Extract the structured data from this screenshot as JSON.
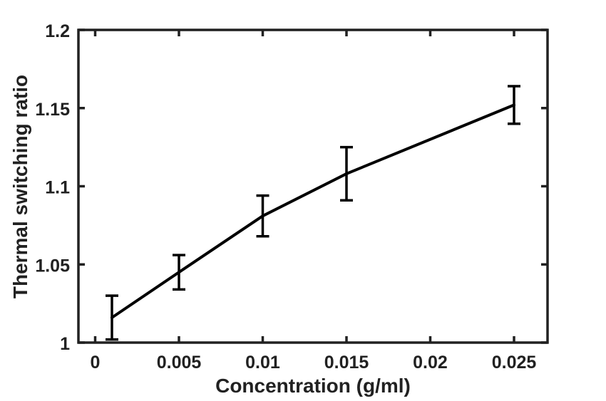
{
  "figure": {
    "background": "#ffffff",
    "axes_color": "#212121",
    "text_color": "#212121"
  },
  "chart_data": {
    "type": "line",
    "title": "",
    "xlabel": "Concentration (g/ml)",
    "ylabel": "Thermal switching ratio",
    "x": [
      0.001,
      0.005,
      0.01,
      0.015,
      0.025
    ],
    "y": [
      1.016,
      1.045,
      1.081,
      1.108,
      1.152
    ],
    "yerr": [
      0.014,
      0.011,
      0.013,
      0.017,
      0.012
    ],
    "line_color": "#000000",
    "line_width": 4,
    "errorbar_cap_halfwidth": 9,
    "xlim": [
      -0.001,
      0.027
    ],
    "ylim": [
      1.0,
      1.2
    ],
    "xticks": [
      0,
      0.005,
      0.01,
      0.015,
      0.02,
      0.025
    ],
    "xtick_labels": [
      "0",
      "0.005",
      "0.01",
      "0.015",
      "0.02",
      "0.025"
    ],
    "yticks": [
      1.0,
      1.05,
      1.1,
      1.15,
      1.2
    ],
    "ytick_labels": [
      "1",
      "1.05",
      "1.1",
      "1.15",
      "1.2"
    ],
    "grid": false,
    "legend": null,
    "box": true,
    "tick_direction": "in"
  }
}
